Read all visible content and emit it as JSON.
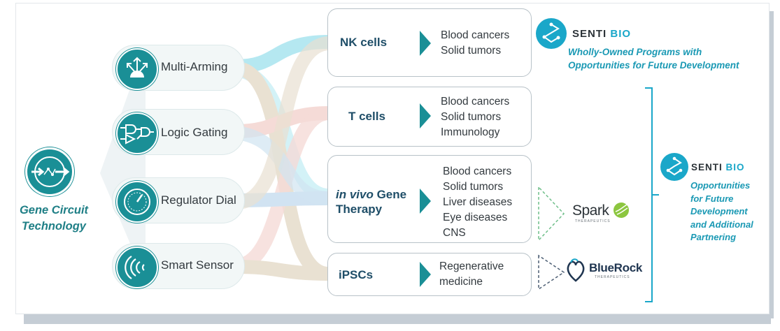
{
  "center": {
    "label_line1": "Gene Circuit",
    "label_line2": "Technology",
    "icon": "gene-circuit-icon"
  },
  "technologies": [
    {
      "label": "Multi-Arming",
      "icon": "multi-arming-icon"
    },
    {
      "label": "Logic Gating",
      "icon": "logic-gate-icon"
    },
    {
      "label": "Regulator Dial",
      "icon": "dial-icon"
    },
    {
      "label": "Smart Sensor",
      "icon": "sensor-waves-icon"
    }
  ],
  "cell_types": [
    {
      "title_em": "",
      "title": "NK cells",
      "indications": [
        "Blood cancers",
        "Solid tumors"
      ]
    },
    {
      "title_em": "",
      "title": "T cells",
      "indications": [
        "Blood cancers",
        "Solid tumors",
        "Immunology"
      ]
    },
    {
      "title_em": "in vivo",
      "title": " Gene Therapy",
      "indications": [
        "Blood cancers",
        "Solid tumors",
        "Liver diseases",
        "Eye diseases",
        "CNS"
      ]
    },
    {
      "title_em": "",
      "title": "iPSCs",
      "indications": [
        "Regenerative",
        "medicine"
      ]
    }
  ],
  "senti_top": {
    "brand_word": "SENTI",
    "brand_bio": "BIO",
    "tagline_line1": "Wholly-Owned Programs with",
    "tagline_line2": "Opportunities for Future Development"
  },
  "senti_right": {
    "brand_word": "SENTI",
    "brand_bio": "BIO",
    "lines": [
      "Opportunities",
      "for Future",
      "Development",
      "and Additional",
      "Partnering"
    ]
  },
  "partners": [
    {
      "name": "Spark",
      "sub": "THERAPEUTICS",
      "icon": "spark-leaf-icon"
    },
    {
      "name": "BlueRock",
      "sub": "THERAPEUTICS",
      "icon": "bluerock-heart-icon"
    }
  ],
  "colors": {
    "teal": "#1a8f96",
    "navy_title": "#1f4e68",
    "senti_blue": "#1aa7c9",
    "flow_cyan": "#a9e4ef",
    "flow_tan": "#e6dccb",
    "flow_pink": "#f4d5d1",
    "flow_blue": "#c9dff0"
  }
}
